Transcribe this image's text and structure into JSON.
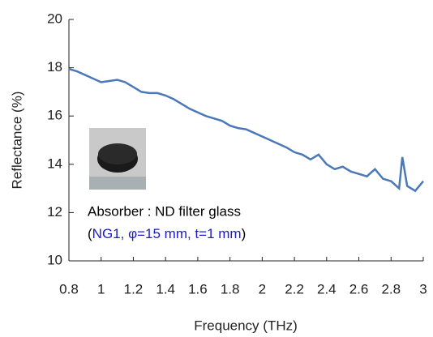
{
  "chart_data": {
    "type": "line",
    "x_label": "Frequency (THz)",
    "y_label": "Reflectance (%)",
    "x": [
      0.8,
      0.85,
      0.9,
      0.95,
      1.0,
      1.05,
      1.1,
      1.15,
      1.2,
      1.25,
      1.3,
      1.35,
      1.4,
      1.45,
      1.5,
      1.55,
      1.6,
      1.65,
      1.7,
      1.75,
      1.8,
      1.85,
      1.9,
      1.95,
      2.0,
      2.05,
      2.1,
      2.15,
      2.2,
      2.25,
      2.3,
      2.35,
      2.4,
      2.45,
      2.5,
      2.55,
      2.6,
      2.65,
      2.7,
      2.75,
      2.8,
      2.85,
      2.87,
      2.9,
      2.95,
      3.0
    ],
    "series": [
      {
        "color": "#4a78b8",
        "values": [
          17.95,
          17.85,
          17.7,
          17.55,
          17.4,
          17.45,
          17.5,
          17.4,
          17.2,
          17.0,
          16.95,
          16.95,
          16.85,
          16.7,
          16.5,
          16.3,
          16.15,
          16.0,
          15.9,
          15.8,
          15.6,
          15.5,
          15.45,
          15.3,
          15.15,
          15.0,
          14.85,
          14.7,
          14.5,
          14.4,
          14.2,
          14.4,
          14.0,
          13.8,
          13.9,
          13.7,
          13.6,
          13.5,
          13.8,
          13.4,
          13.3,
          13.0,
          14.3,
          13.1,
          12.9,
          13.3
        ]
      }
    ],
    "xlim": [
      0.8,
      3
    ],
    "xticks": [
      0.8,
      1,
      1.2,
      1.4,
      1.6,
      1.8,
      2,
      2.2,
      2.4,
      2.6,
      2.8,
      3
    ],
    "ylim": [
      10,
      20
    ],
    "yticks": [
      10,
      12,
      14,
      16,
      18,
      20
    ],
    "annotation_line1": "Absorber : ND filter glass",
    "annotation_line2": [
      "(",
      "NG1, φ=15 mm, t=1 mm",
      ")"
    ]
  }
}
